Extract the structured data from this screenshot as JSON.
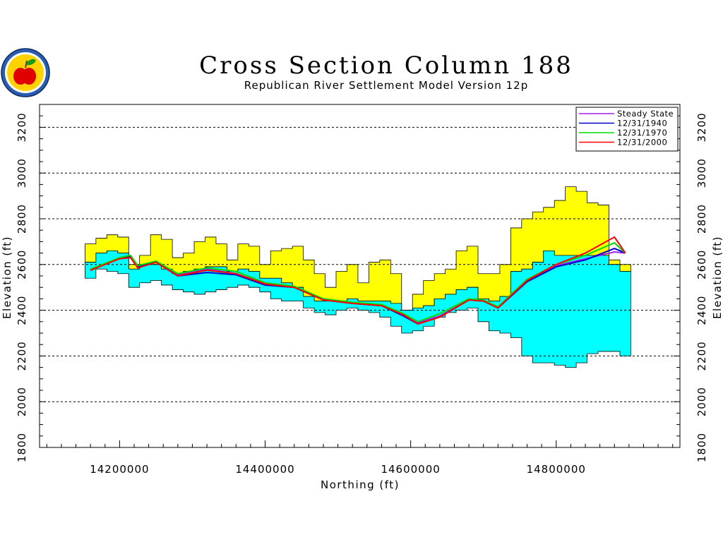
{
  "chart_data": {
    "type": "area",
    "title": "Cross Section Column 188",
    "subtitle": "Republican River Settlement Model Version 12p",
    "xlabel": "Northing (ft)",
    "ylabel": "Elevation (ft)",
    "xlim": [
      14090000,
      14970000
    ],
    "ylim": [
      1800,
      3300
    ],
    "x_ticks": [
      14200000,
      14400000,
      14600000,
      14800000
    ],
    "x_tick_labels": [
      "14200000",
      "14400000",
      "14600000",
      "14800000"
    ],
    "y_ticks": [
      1800,
      2000,
      2200,
      2400,
      2600,
      2800,
      3000,
      3200
    ],
    "y_tick_labels": [
      "1800",
      "2000",
      "2200",
      "2400",
      "2600",
      "2800",
      "3000",
      "3200"
    ],
    "y_gridlines": [
      2000,
      2200,
      2400,
      2600,
      2800,
      3000,
      3200
    ],
    "grid": true,
    "legend_position": "top-right",
    "colors": {
      "upper_layer": "#ffff00",
      "lower_layer": "#00ffff",
      "steady_state": "#a020f0",
      "y1940": "#0000cc",
      "y1970": "#00dd00",
      "y2000": "#ff0000"
    },
    "layers": {
      "x": [
        14160000,
        14175000,
        14190000,
        14205000,
        14220000,
        14235000,
        14250000,
        14265000,
        14280000,
        14295000,
        14310000,
        14325000,
        14340000,
        14355000,
        14370000,
        14385000,
        14400000,
        14415000,
        14430000,
        14445000,
        14460000,
        14475000,
        14490000,
        14505000,
        14520000,
        14535000,
        14550000,
        14565000,
        14580000,
        14595000,
        14610000,
        14625000,
        14640000,
        14655000,
        14670000,
        14685000,
        14700000,
        14715000,
        14730000,
        14745000,
        14760000,
        14775000,
        14790000,
        14805000,
        14820000,
        14835000,
        14850000,
        14865000,
        14880000,
        14895000
      ],
      "land_surface": [
        2690,
        2715,
        2730,
        2720,
        2600,
        2640,
        2730,
        2710,
        2630,
        2650,
        2700,
        2720,
        2690,
        2620,
        2690,
        2680,
        2600,
        2660,
        2670,
        2680,
        2620,
        2560,
        2500,
        2570,
        2600,
        2520,
        2610,
        2620,
        2560,
        2400,
        2470,
        2530,
        2560,
        2580,
        2660,
        2680,
        2560,
        2560,
        2600,
        2760,
        2800,
        2830,
        2850,
        2880,
        2940,
        2920,
        2870,
        2860,
        2620,
        2600
      ],
      "layer_boundary": [
        2610,
        2650,
        2660,
        2650,
        2580,
        2600,
        2600,
        2580,
        2560,
        2570,
        2580,
        2590,
        2590,
        2570,
        2580,
        2570,
        2540,
        2540,
        2520,
        2500,
        2460,
        2440,
        2440,
        2440,
        2450,
        2440,
        2440,
        2440,
        2430,
        2400,
        2410,
        2420,
        2450,
        2470,
        2490,
        2500,
        2450,
        2440,
        2460,
        2570,
        2580,
        2610,
        2660,
        2640,
        2640,
        2640,
        2640,
        2640,
        2600,
        2570
      ],
      "aquifer_base": [
        2540,
        2580,
        2570,
        2560,
        2500,
        2520,
        2530,
        2510,
        2490,
        2480,
        2470,
        2480,
        2490,
        2500,
        2510,
        2500,
        2480,
        2450,
        2440,
        2440,
        2410,
        2390,
        2380,
        2400,
        2410,
        2400,
        2390,
        2370,
        2330,
        2300,
        2310,
        2330,
        2370,
        2390,
        2400,
        2410,
        2350,
        2310,
        2300,
        2280,
        2200,
        2170,
        2170,
        2160,
        2150,
        2170,
        2210,
        2220,
        2220,
        2200
      ]
    },
    "series": [
      {
        "name": "Steady State",
        "x": [
          14160000,
          14200000,
          14215000,
          14225000,
          14250000,
          14280000,
          14320000,
          14360000,
          14400000,
          14440000,
          14480000,
          14520000,
          14560000,
          14590000,
          14610000,
          14640000,
          14680000,
          14700000,
          14720000,
          14760000,
          14800000,
          14840000,
          14880000,
          14895000
        ],
        "y": [
          2575,
          2630,
          2640,
          2590,
          2610,
          2555,
          2580,
          2560,
          2515,
          2500,
          2450,
          2430,
          2420,
          2380,
          2345,
          2375,
          2445,
          2445,
          2410,
          2530,
          2595,
          2625,
          2655,
          2650
        ]
      },
      {
        "name": "12/31/1940",
        "x": [
          14160000,
          14200000,
          14215000,
          14225000,
          14250000,
          14280000,
          14320000,
          14360000,
          14400000,
          14440000,
          14480000,
          14520000,
          14560000,
          14590000,
          14610000,
          14640000,
          14680000,
          14700000,
          14720000,
          14760000,
          14800000,
          14840000,
          14880000,
          14895000
        ],
        "y": [
          2575,
          2630,
          2635,
          2590,
          2610,
          2550,
          2565,
          2555,
          2510,
          2500,
          2445,
          2430,
          2420,
          2375,
          2340,
          2370,
          2445,
          2440,
          2410,
          2525,
          2590,
          2620,
          2670,
          2650
        ]
      },
      {
        "name": "12/31/1970",
        "x": [
          14160000,
          14200000,
          14215000,
          14225000,
          14250000,
          14280000,
          14320000,
          14360000,
          14400000,
          14440000,
          14480000,
          14520000,
          14560000,
          14590000,
          14610000,
          14640000,
          14680000,
          14700000,
          14720000,
          14760000,
          14800000,
          14840000,
          14880000,
          14895000
        ],
        "y": [
          2580,
          2630,
          2640,
          2595,
          2615,
          2560,
          2585,
          2570,
          2520,
          2505,
          2450,
          2435,
          2425,
          2385,
          2350,
          2385,
          2450,
          2445,
          2415,
          2535,
          2600,
          2640,
          2695,
          2650
        ]
      },
      {
        "name": "12/31/2000",
        "x": [
          14160000,
          14200000,
          14215000,
          14225000,
          14250000,
          14280000,
          14320000,
          14360000,
          14400000,
          14440000,
          14480000,
          14520000,
          14560000,
          14590000,
          14610000,
          14640000,
          14680000,
          14700000,
          14720000,
          14760000,
          14800000,
          14840000,
          14880000,
          14895000
        ],
        "y": [
          2575,
          2625,
          2630,
          2585,
          2610,
          2550,
          2575,
          2560,
          2515,
          2500,
          2445,
          2430,
          2420,
          2380,
          2340,
          2370,
          2445,
          2440,
          2410,
          2530,
          2600,
          2650,
          2720,
          2650
        ]
      }
    ]
  },
  "logo": {
    "icon": "seal-with-apple-icon",
    "colors": {
      "ring": "#2a5db0",
      "fill": "#ffd200",
      "apple": "#e00000",
      "leaf": "#1a9a1a"
    }
  }
}
